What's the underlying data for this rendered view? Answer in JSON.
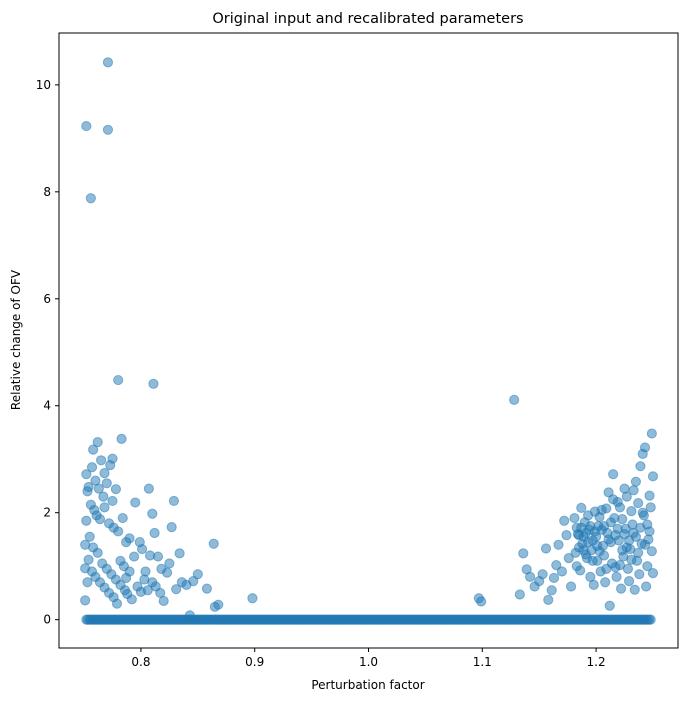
{
  "chart_data": {
    "type": "scatter",
    "title": "Original input and recalibrated parameters",
    "xlabel": "Perturbation factor",
    "ylabel": "Relative change of OFV",
    "xlim": [
      0.728,
      1.272
    ],
    "ylim": [
      -0.53,
      10.97
    ],
    "xticks": [
      0.8,
      0.9,
      1.0,
      1.1,
      1.2
    ],
    "xtick_labels": [
      "0.8",
      "0.9",
      "1.0",
      "1.1",
      "1.2"
    ],
    "yticks": [
      0,
      2,
      4,
      6,
      8,
      10
    ],
    "ytick_labels": [
      "0",
      "2",
      "4",
      "6",
      "8",
      "10"
    ],
    "grid": false,
    "legend": "none",
    "marker_color": "#1f77b4",
    "marker_alpha": 0.5,
    "zero_band": {
      "x_range": [
        0.752,
        1.248
      ],
      "y": 0,
      "approx_count": 350
    },
    "points": [
      [
        0.752,
        9.23
      ],
      [
        0.771,
        10.42
      ],
      [
        0.771,
        9.16
      ],
      [
        0.756,
        7.88
      ],
      [
        0.78,
        4.48
      ],
      [
        0.811,
        4.41
      ],
      [
        1.128,
        4.11
      ],
      [
        0.752,
        2.72
      ],
      [
        0.754,
        2.48
      ],
      [
        0.758,
        3.18
      ],
      [
        0.762,
        3.32
      ],
      [
        0.765,
        2.98
      ],
      [
        0.768,
        2.74
      ],
      [
        0.773,
        2.89
      ],
      [
        0.775,
        3.01
      ],
      [
        0.783,
        3.38
      ],
      [
        0.757,
        2.85
      ],
      [
        0.76,
        2.6
      ],
      [
        0.763,
        2.45
      ],
      [
        0.767,
        2.3
      ],
      [
        0.77,
        2.55
      ],
      [
        0.775,
        2.22
      ],
      [
        0.778,
        2.44
      ],
      [
        0.753,
        2.4
      ],
      [
        0.756,
        2.15
      ],
      [
        0.759,
        2.05
      ],
      [
        0.761,
        1.95
      ],
      [
        0.764,
        1.88
      ],
      [
        0.768,
        2.1
      ],
      [
        0.772,
        1.8
      ],
      [
        0.776,
        1.72
      ],
      [
        0.78,
        1.65
      ],
      [
        0.784,
        1.9
      ],
      [
        0.787,
        1.45
      ],
      [
        0.79,
        1.52
      ],
      [
        0.752,
        1.85
      ],
      [
        0.755,
        1.55
      ],
      [
        0.758,
        1.35
      ],
      [
        0.762,
        1.25
      ],
      [
        0.766,
        1.05
      ],
      [
        0.77,
        0.95
      ],
      [
        0.774,
        0.85
      ],
      [
        0.778,
        0.75
      ],
      [
        0.782,
        0.65
      ],
      [
        0.786,
        0.55
      ],
      [
        0.751,
        1.4
      ],
      [
        0.754,
        1.12
      ],
      [
        0.757,
        0.9
      ],
      [
        0.76,
        0.8
      ],
      [
        0.764,
        0.7
      ],
      [
        0.768,
        0.6
      ],
      [
        0.772,
        0.5
      ],
      [
        0.776,
        0.42
      ],
      [
        0.779,
        0.3
      ],
      [
        0.751,
        0.96
      ],
      [
        0.753,
        0.7
      ],
      [
        0.751,
        0.36
      ],
      [
        0.788,
        0.48
      ],
      [
        0.792,
        0.38
      ],
      [
        0.795,
        2.19
      ],
      [
        0.799,
        1.45
      ],
      [
        0.801,
        1.32
      ],
      [
        0.804,
        0.9
      ],
      [
        0.807,
        2.45
      ],
      [
        0.81,
        1.98
      ],
      [
        0.812,
        1.62
      ],
      [
        0.815,
        1.18
      ],
      [
        0.818,
        0.95
      ],
      [
        0.803,
        0.75
      ],
      [
        0.806,
        0.55
      ],
      [
        0.81,
        0.7
      ],
      [
        0.813,
        0.62
      ],
      [
        0.817,
        0.5
      ],
      [
        0.82,
        0.35
      ],
      [
        0.823,
        0.88
      ],
      [
        0.825,
        1.05
      ],
      [
        0.827,
        1.73
      ],
      [
        0.829,
        2.22
      ],
      [
        0.831,
        0.57
      ],
      [
        0.834,
        1.24
      ],
      [
        0.836,
        0.7
      ],
      [
        0.84,
        0.65
      ],
      [
        0.843,
        0.08
      ],
      [
        0.846,
        0.72
      ],
      [
        0.85,
        0.85
      ],
      [
        0.858,
        0.58
      ],
      [
        0.864,
        1.42
      ],
      [
        0.865,
        0.24
      ],
      [
        0.868,
        0.28
      ],
      [
        0.898,
        0.4
      ],
      [
        0.782,
        1.1
      ],
      [
        0.785,
        1.0
      ],
      [
        0.79,
        0.9
      ],
      [
        0.794,
        1.18
      ],
      [
        0.797,
        0.62
      ],
      [
        0.8,
        0.52
      ],
      [
        0.808,
        1.2
      ],
      [
        0.787,
        0.78
      ],
      [
        1.097,
        0.4
      ],
      [
        1.099,
        0.34
      ],
      [
        1.133,
        0.47
      ],
      [
        1.136,
        1.24
      ],
      [
        1.139,
        0.94
      ],
      [
        1.142,
        0.8
      ],
      [
        1.146,
        0.62
      ],
      [
        1.15,
        0.72
      ],
      [
        1.153,
        0.85
      ],
      [
        1.156,
        1.33
      ],
      [
        1.158,
        0.37
      ],
      [
        1.161,
        0.55
      ],
      [
        1.163,
        0.78
      ],
      [
        1.165,
        1.02
      ],
      [
        1.167,
        1.4
      ],
      [
        1.17,
        0.9
      ],
      [
        1.172,
        1.85
      ],
      [
        1.174,
        1.58
      ],
      [
        1.176,
        1.15
      ],
      [
        1.178,
        0.62
      ],
      [
        1.181,
        1.9
      ],
      [
        1.183,
        1.72
      ],
      [
        1.185,
        1.35
      ],
      [
        1.187,
        2.09
      ],
      [
        1.189,
        1.55
      ],
      [
        1.191,
        1.22
      ],
      [
        1.193,
        1.95
      ],
      [
        1.195,
        0.8
      ],
      [
        1.197,
        1.48
      ],
      [
        1.199,
        1.65
      ],
      [
        1.201,
        1.1
      ],
      [
        1.203,
        1.28
      ],
      [
        1.205,
        2.05
      ],
      [
        1.207,
        1.75
      ],
      [
        1.209,
        0.95
      ],
      [
        1.211,
        2.38
      ],
      [
        1.213,
        1.45
      ],
      [
        1.215,
        2.72
      ],
      [
        1.217,
        1.58
      ],
      [
        1.219,
        2.2
      ],
      [
        1.221,
        1.02
      ],
      [
        1.223,
        1.88
      ],
      [
        1.225,
        2.45
      ],
      [
        1.227,
        1.35
      ],
      [
        1.229,
        0.72
      ],
      [
        1.231,
        2.03
      ],
      [
        1.233,
        1.62
      ],
      [
        1.235,
        2.58
      ],
      [
        1.237,
        1.25
      ],
      [
        1.239,
        2.87
      ],
      [
        1.241,
        3.1
      ],
      [
        1.243,
        3.22
      ],
      [
        1.245,
        1.78
      ],
      [
        1.247,
        2.32
      ],
      [
        1.249,
        3.48
      ],
      [
        1.25,
        2.68
      ],
      [
        1.248,
        2.1
      ],
      [
        1.246,
        1.5
      ],
      [
        1.244,
        0.62
      ],
      [
        1.242,
        1.95
      ],
      [
        1.24,
        1.42
      ],
      [
        1.238,
        0.85
      ],
      [
        1.236,
        1.1
      ],
      [
        1.234,
        0.56
      ],
      [
        1.232,
        1.78
      ],
      [
        1.23,
        1.32
      ],
      [
        1.228,
        0.95
      ],
      [
        1.226,
        1.7
      ],
      [
        1.224,
        1.18
      ],
      [
        1.222,
        0.58
      ],
      [
        1.22,
        1.48
      ],
      [
        1.218,
        0.8
      ],
      [
        1.216,
        1.9
      ],
      [
        1.214,
        1.05
      ],
      [
        1.212,
        0.26
      ],
      [
        1.21,
        1.62
      ],
      [
        1.208,
        0.7
      ],
      [
        1.206,
        1.38
      ],
      [
        1.204,
        0.9
      ],
      [
        1.202,
        1.75
      ],
      [
        1.2,
        1.55
      ],
      [
        1.198,
        0.65
      ],
      [
        1.196,
        1.3
      ],
      [
        1.194,
        1.68
      ],
      [
        1.192,
        1.15
      ],
      [
        1.19,
        1.82
      ],
      [
        1.188,
        1.42
      ],
      [
        1.186,
        0.92
      ],
      [
        1.184,
        1.6
      ],
      [
        1.182,
        1.25
      ],
      [
        1.25,
        0.87
      ],
      [
        1.249,
        1.28
      ],
      [
        1.247,
        1.65
      ],
      [
        1.245,
        1.0
      ],
      [
        1.243,
        1.4
      ],
      [
        1.241,
        2.0
      ],
      [
        1.239,
        1.72
      ],
      [
        1.237,
        2.18
      ],
      [
        1.235,
        1.55
      ],
      [
        1.233,
        2.42
      ],
      [
        1.231,
        1.12
      ],
      [
        1.229,
        1.48
      ],
      [
        1.227,
        2.3
      ],
      [
        1.225,
        1.6
      ],
      [
        1.223,
        1.3
      ],
      [
        1.221,
        2.1
      ],
      [
        1.219,
        1.7
      ],
      [
        1.217,
        0.98
      ],
      [
        1.215,
        2.25
      ],
      [
        1.213,
        1.82
      ],
      [
        1.211,
        1.5
      ],
      [
        1.209,
        2.08
      ],
      [
        1.207,
        1.2
      ],
      [
        1.205,
        1.68
      ],
      [
        1.203,
        1.92
      ],
      [
        1.201,
        1.38
      ],
      [
        1.199,
        2.02
      ],
      [
        1.197,
        1.1
      ],
      [
        1.195,
        1.75
      ],
      [
        1.193,
        1.45
      ],
      [
        1.191,
        1.62
      ],
      [
        1.189,
        1.3
      ],
      [
        1.187,
        1.72
      ],
      [
        1.185,
        1.58
      ],
      [
        1.183,
        1.0
      ]
    ]
  }
}
